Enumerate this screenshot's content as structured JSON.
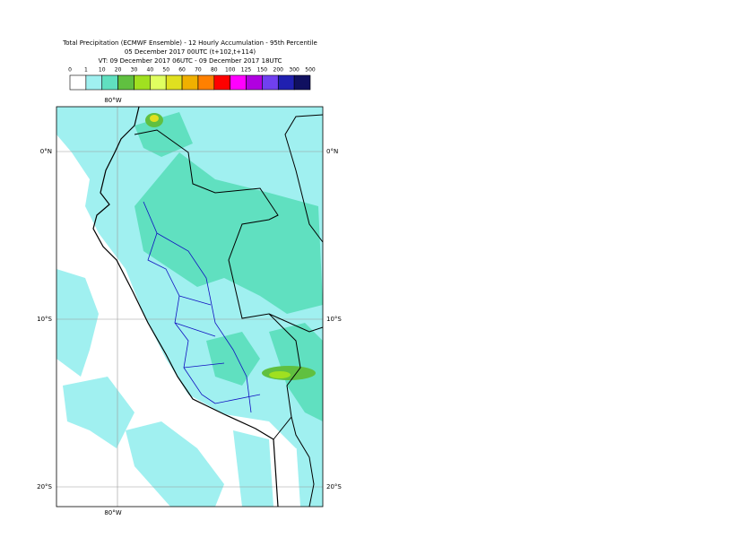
{
  "header": {
    "title": [
      "Total Precipitation (ECMWF Ensemble) - 12 Hourly Accumulation - 95th Percentile",
      "05 December 2017 00UTC (t+102,t+114)",
      "VT: 09 December 2017 06UTC - 09 December 2017 18UTC"
    ]
  },
  "legend": {
    "labels": [
      "0",
      "1",
      "10",
      "20",
      "30",
      "40",
      "50",
      "60",
      "70",
      "80",
      "100",
      "125",
      "150",
      "200",
      "300",
      "500"
    ],
    "colors": [
      "#ffffff",
      "#a0f0f0",
      "#60e0c0",
      "#60c040",
      "#a0e020",
      "#e0ff60",
      "#e0e020",
      "#f0b000",
      "#ff8000",
      "#ff0000",
      "#ff00ff",
      "#b000e0",
      "#7040f0",
      "#2020b0",
      "#101060"
    ]
  },
  "map": {
    "lon_labels": [
      "80°W",
      "80°W"
    ],
    "lat_labels_left": [
      "0°N",
      "10°S",
      "20°S"
    ],
    "lat_labels_right": [
      "0°N",
      "10°S",
      "20°S"
    ]
  }
}
